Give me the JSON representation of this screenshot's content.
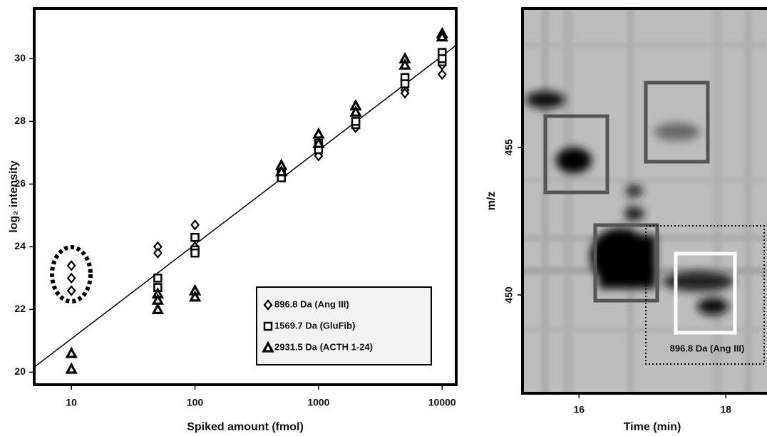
{
  "chart_data": [
    {
      "type": "scatter",
      "x_label": "Spiked amount (fmol)",
      "y_label": "log₂ intensity",
      "xscale": "log",
      "xlim": [
        5,
        13000
      ],
      "xticks": [
        10,
        100,
        1000,
        10000
      ],
      "ylim": [
        19.6,
        31.6
      ],
      "yticks": [
        20,
        22,
        24,
        26,
        28,
        30
      ],
      "legend": "lower right",
      "series": [
        {
          "name": "896.8 Da (Ang III)",
          "marker": "diamond",
          "color": "#000000",
          "x": [
            10,
            10,
            10,
            50,
            50,
            100,
            100,
            500,
            500,
            1000,
            1000,
            1000,
            2000,
            2000,
            5000,
            5000,
            5000,
            10000,
            10000,
            10000
          ],
          "values": [
            23.4,
            23.0,
            22.6,
            24.0,
            23.8,
            24.7,
            24.0,
            26.4,
            26.3,
            27.0,
            26.9,
            27.2,
            27.9,
            27.8,
            29.2,
            29.0,
            28.9,
            29.8,
            29.5,
            30.0
          ]
        },
        {
          "name": "1569.7 Da (GluFib)",
          "marker": "square",
          "color": "#000000",
          "x": [
            50,
            50,
            100,
            100,
            100,
            500,
            500,
            1000,
            1000,
            2000,
            2000,
            5000,
            5000,
            10000,
            10000,
            10000
          ],
          "values": [
            23.0,
            22.7,
            24.3,
            23.9,
            23.8,
            26.2,
            26.4,
            27.1,
            27.3,
            27.9,
            28.0,
            29.4,
            29.2,
            30.2,
            29.9,
            30.0
          ]
        },
        {
          "name": "2931.5 Da (ACTH 1-24)",
          "marker": "triangle",
          "color": "#000000",
          "x": [
            10,
            10,
            50,
            50,
            50,
            100,
            100,
            500,
            500,
            1000,
            1000,
            2000,
            2000,
            5000,
            5000,
            10000,
            10000
          ],
          "values": [
            20.6,
            20.1,
            22.5,
            22.3,
            22.0,
            22.6,
            22.4,
            26.6,
            26.4,
            27.6,
            27.3,
            28.5,
            28.3,
            30.0,
            29.8,
            30.8,
            30.7
          ]
        }
      ],
      "fit": {
        "x": [
          5,
          13000
        ],
        "values": [
          20.16,
          30.43
        ]
      }
    },
    {
      "type": "image",
      "x_label": "Time (min)",
      "y_label": "m/z",
      "xlim": [
        15.23,
        18.56
      ],
      "xticks": [
        16,
        18
      ],
      "ylim": [
        446.67,
        459.7
      ],
      "yticks": [
        450,
        455
      ],
      "annotation": "896.8 Da (Ang III)"
    }
  ]
}
